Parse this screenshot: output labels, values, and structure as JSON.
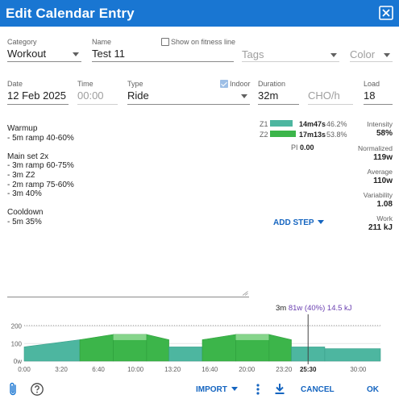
{
  "dialog": {
    "title": "Edit Calendar Entry"
  },
  "form": {
    "category": {
      "label": "Category",
      "value": "Workout"
    },
    "name": {
      "label": "Name",
      "value": "Test 11"
    },
    "show_fitness": {
      "label": "Show on fitness line",
      "checked": false
    },
    "tags": {
      "placeholder": "Tags"
    },
    "color": {
      "placeholder": "Color"
    },
    "date": {
      "label": "Date",
      "value": "12 Feb 2025"
    },
    "time": {
      "label": "Time",
      "placeholder": "00:00"
    },
    "type": {
      "label": "Type",
      "value": "Ride"
    },
    "indoor": {
      "label": "Indoor",
      "checked": true
    },
    "duration": {
      "label": "Duration",
      "value": "32m"
    },
    "cho": {
      "placeholder": "CHO/h"
    },
    "load": {
      "label": "Load",
      "value": "18"
    }
  },
  "description_lines": [
    "Warmup",
    "- 5m ramp 40-60%",
    "",
    "Main set 2x",
    "- 3m ramp 60-75%",
    "- 3m Z2",
    "- 2m ramp 75-60%",
    "- 3m 40%",
    "",
    "Cooldown",
    "- 5m 35%"
  ],
  "zones": [
    {
      "name": "Z1",
      "time": "14m47s",
      "pct": "46.2%",
      "fraction": 0.462,
      "color": "#4db6a0"
    },
    {
      "name": "Z2",
      "time": "17m13s",
      "pct": "53.8%",
      "fraction": 0.538,
      "color": "#3cb54a"
    }
  ],
  "pi": {
    "label": "PI",
    "value": "0.00"
  },
  "stats": [
    {
      "label": "Intensity",
      "value": "58%"
    },
    {
      "label": "Normalized",
      "value": "119w"
    },
    {
      "label": "Average",
      "value": "110w"
    },
    {
      "label": "Variability",
      "value": "1.08"
    },
    {
      "label": "Work",
      "value": "211 kJ"
    }
  ],
  "add_step_label": "ADD STEP",
  "hover": {
    "duration": "3m",
    "power": "81w (40%)",
    "energy": "14.5 kJ",
    "cursor_time": "25:30"
  },
  "chart_data": {
    "type": "area",
    "x_unit": "minutes",
    "ylim": [
      0,
      230
    ],
    "y_ticks": [
      0,
      100,
      200
    ],
    "y_tick_labels": [
      "0w",
      "100",
      "200"
    ],
    "x_ticks": [
      "0:00",
      "3:20",
      "6:40",
      "10:00",
      "13:20",
      "16:40",
      "20:00",
      "23:20",
      "25:30",
      "30:00"
    ],
    "x_tick_values": [
      0,
      3.333,
      6.667,
      10,
      13.333,
      16.667,
      20,
      23.333,
      25.5,
      30
    ],
    "xlim": [
      0,
      32
    ],
    "ftp_line": 203,
    "cursor_x": 25.5,
    "steps": [
      {
        "start": 0,
        "duration": 5,
        "from": 81,
        "to": 122,
        "zone": "Z1"
      },
      {
        "start": 5,
        "duration": 3,
        "from": 122,
        "to": 152,
        "zone": "Z2"
      },
      {
        "start": 8,
        "duration": 3,
        "from": 152,
        "to": 152,
        "zone": "Z2"
      },
      {
        "start": 11,
        "duration": 2,
        "from": 152,
        "to": 122,
        "zone": "Z2"
      },
      {
        "start": 13,
        "duration": 3,
        "from": 81,
        "to": 81,
        "zone": "Z1"
      },
      {
        "start": 16,
        "duration": 3,
        "from": 122,
        "to": 152,
        "zone": "Z2"
      },
      {
        "start": 19,
        "duration": 3,
        "from": 152,
        "to": 152,
        "zone": "Z2"
      },
      {
        "start": 22,
        "duration": 2,
        "from": 152,
        "to": 122,
        "zone": "Z2"
      },
      {
        "start": 24,
        "duration": 3,
        "from": 81,
        "to": 81,
        "zone": "Z1"
      },
      {
        "start": 27,
        "duration": 5,
        "from": 71,
        "to": 71,
        "zone": "Z1"
      }
    ],
    "zone_colors": {
      "Z1": "#4db6a0",
      "Z2": "#3cb54a"
    }
  },
  "footer": {
    "import_label": "IMPORT",
    "cancel_label": "CANCEL",
    "ok_label": "OK"
  },
  "colors": {
    "header": "#1976d2",
    "accent": "#1565c0"
  }
}
